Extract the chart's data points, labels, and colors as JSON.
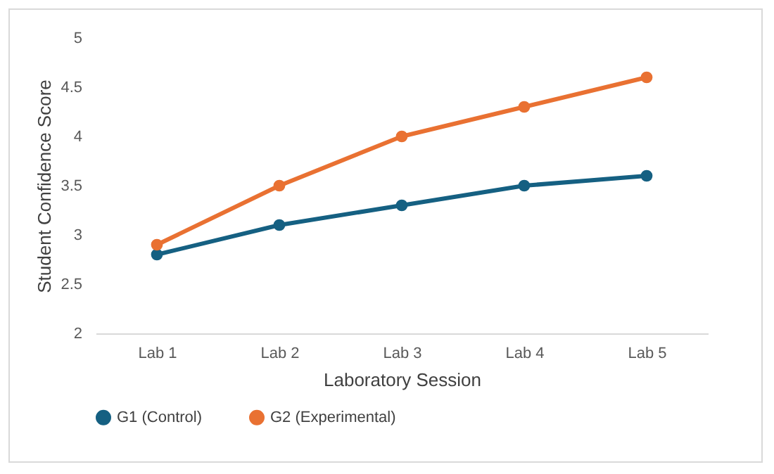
{
  "chart_data": {
    "type": "line",
    "xlabel": "Laboratory Session",
    "ylabel": "Student Confidence Score",
    "categories": [
      "Lab 1",
      "Lab 2",
      "Lab 3",
      "Lab 4",
      "Lab 5"
    ],
    "series": [
      {
        "name": "G1 (Control)",
        "color": "#156082",
        "values": [
          2.8,
          3.1,
          3.3,
          3.5,
          3.6
        ]
      },
      {
        "name": "G2 (Experimental)",
        "color": "#e97132",
        "values": [
          2.9,
          3.5,
          4.0,
          4.3,
          4.6
        ]
      }
    ],
    "ylim": [
      2,
      5
    ],
    "yticks": [
      2,
      2.5,
      3,
      3.5,
      4,
      4.5,
      5
    ],
    "legend": "bottom",
    "marker": "circle",
    "line_style": "solid",
    "grid": false
  }
}
